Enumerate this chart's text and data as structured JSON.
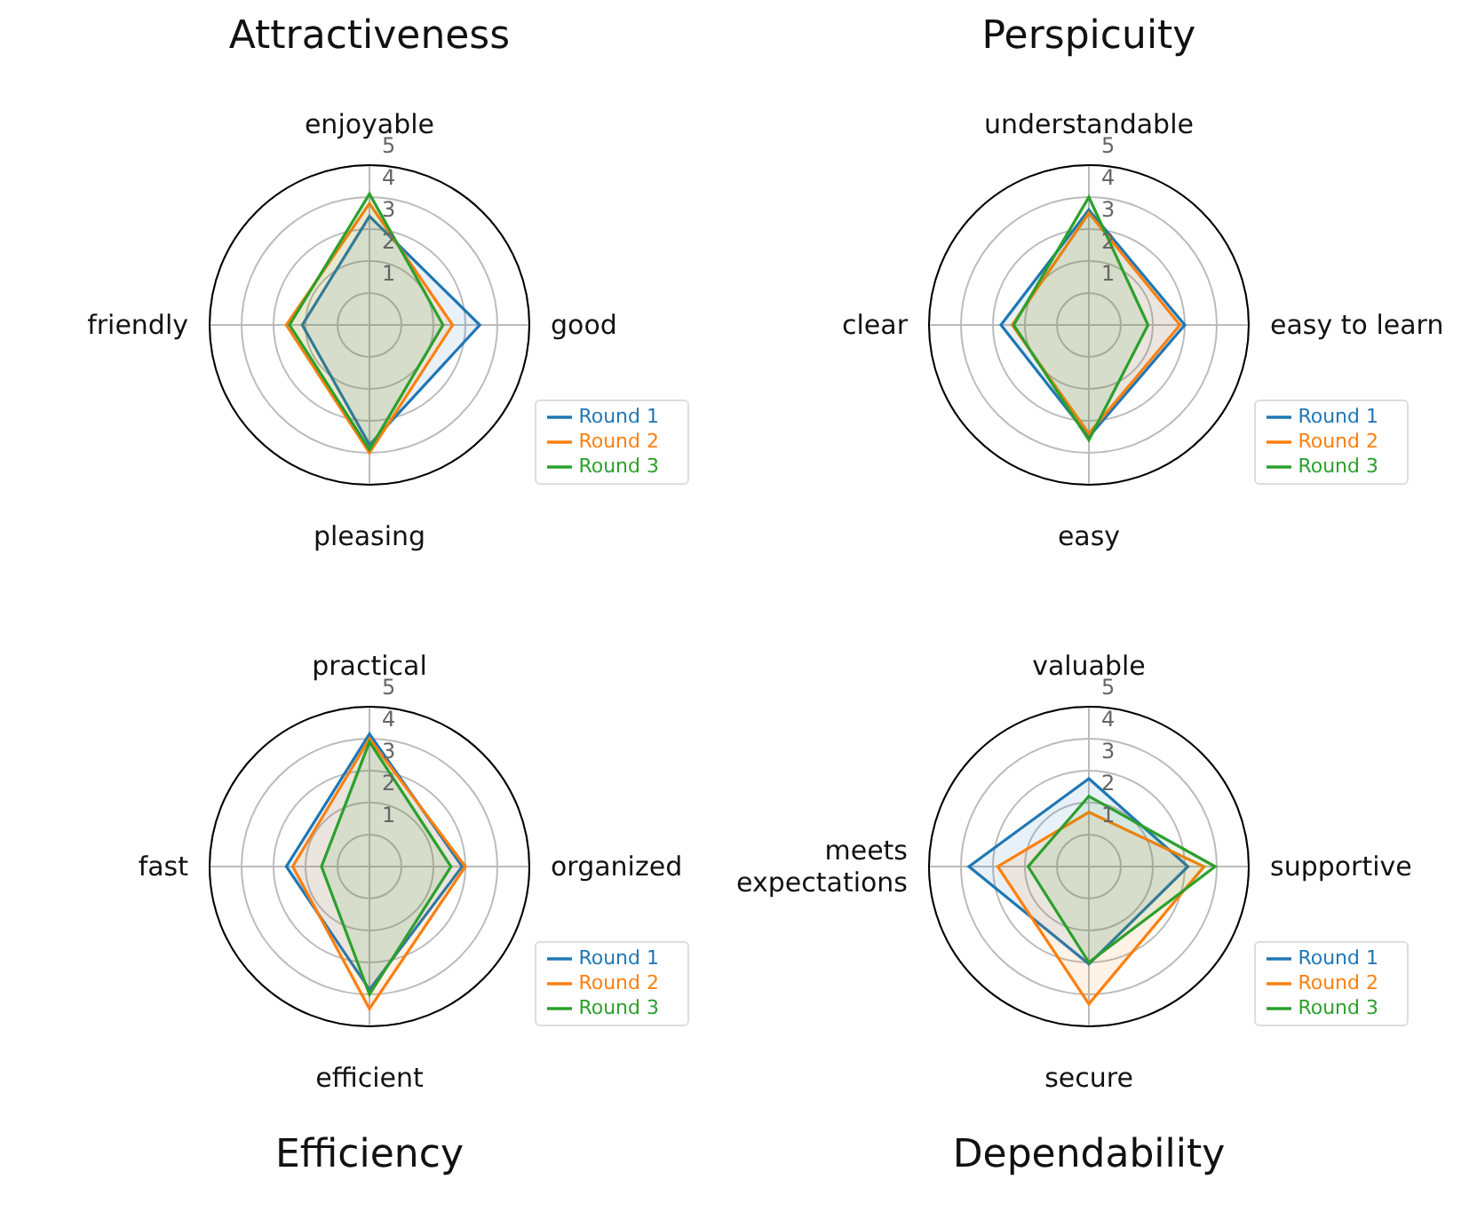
{
  "chart_data": [
    {
      "type": "radar",
      "title": "Attractiveness",
      "categories": [
        "enjoyable",
        "good",
        "pleasing",
        "friendly"
      ],
      "ylim": [
        0,
        5
      ],
      "yticks": [
        1,
        2,
        3,
        4,
        5
      ],
      "grid": true,
      "legend": "right",
      "series": [
        {
          "name": "Round 1",
          "color": "#1f77b4",
          "values": [
            3.4,
            3.45,
            3.75,
            2.1
          ]
        },
        {
          "name": "Round 2",
          "color": "#ff7f0e",
          "values": [
            3.8,
            2.6,
            4.0,
            2.6
          ]
        },
        {
          "name": "Round 3",
          "color": "#2ca02c",
          "values": [
            4.1,
            2.3,
            3.9,
            2.5
          ]
        }
      ]
    },
    {
      "type": "radar",
      "title": "Perspicuity",
      "categories": [
        "understandable",
        "easy to learn",
        "easy",
        "clear"
      ],
      "ylim": [
        0,
        5
      ],
      "yticks": [
        1,
        2,
        3,
        4,
        5
      ],
      "grid": true,
      "legend": "right",
      "series": [
        {
          "name": "Round 1",
          "color": "#1f77b4",
          "values": [
            3.6,
            3.0,
            3.5,
            2.75
          ]
        },
        {
          "name": "Round 2",
          "color": "#ff7f0e",
          "values": [
            3.5,
            2.85,
            3.4,
            2.4
          ]
        },
        {
          "name": "Round 3",
          "color": "#2ca02c",
          "values": [
            4.0,
            1.85,
            3.6,
            2.35
          ]
        }
      ]
    },
    {
      "type": "radar",
      "title": "Efficiency",
      "categories": [
        "practical",
        "organized",
        "efficient",
        "fast"
      ],
      "ylim": [
        0,
        5
      ],
      "yticks": [
        1,
        2,
        3,
        4,
        5
      ],
      "grid": true,
      "legend": "right",
      "series": [
        {
          "name": "Round 1",
          "color": "#1f77b4",
          "values": [
            4.15,
            2.9,
            3.85,
            2.6
          ]
        },
        {
          "name": "Round 2",
          "color": "#ff7f0e",
          "values": [
            4.0,
            3.0,
            4.45,
            2.4
          ]
        },
        {
          "name": "Round 3",
          "color": "#2ca02c",
          "values": [
            3.9,
            2.55,
            4.0,
            1.5
          ]
        }
      ]
    },
    {
      "type": "radar",
      "title": "Dependability",
      "categories": [
        "valuable",
        "supportive",
        "secure",
        "meets\nexpectations"
      ],
      "ylim": [
        0,
        5
      ],
      "yticks": [
        1,
        2,
        3,
        4,
        5
      ],
      "grid": true,
      "legend": "right",
      "series": [
        {
          "name": "Round 1",
          "color": "#1f77b4",
          "values": [
            2.75,
            3.1,
            3.05,
            3.75
          ]
        },
        {
          "name": "Round 2",
          "color": "#ff7f0e",
          "values": [
            1.7,
            3.6,
            4.3,
            2.85
          ]
        },
        {
          "name": "Round 3",
          "color": "#2ca02c",
          "values": [
            2.2,
            3.95,
            3.0,
            1.9
          ]
        }
      ]
    }
  ]
}
